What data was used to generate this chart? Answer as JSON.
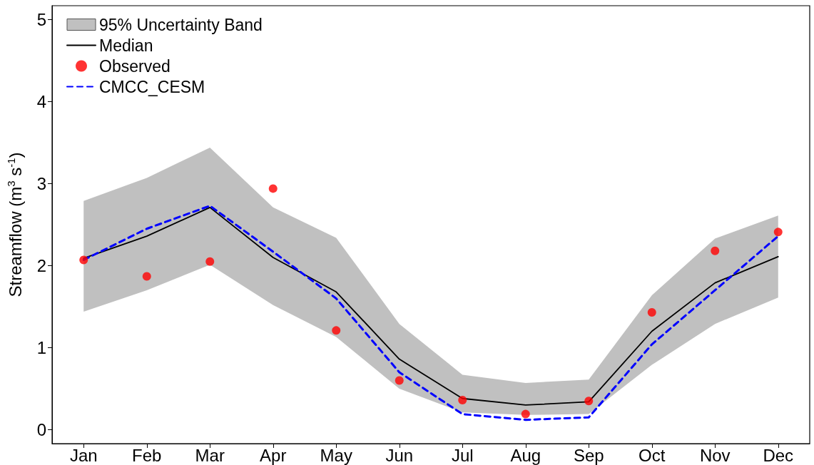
{
  "chart_data": {
    "type": "line",
    "ylabel": "Streamflow (m$^{3}$ s$^{-1}$)",
    "categories": [
      "Jan",
      "Feb",
      "Mar",
      "Apr",
      "May",
      "Jun",
      "Jul",
      "Aug",
      "Sep",
      "Oct",
      "Nov",
      "Dec"
    ],
    "ylim": [
      -0.17,
      5.17
    ],
    "yticks": [
      0,
      1,
      2,
      3,
      4,
      5
    ],
    "grid": false,
    "legend": "top left",
    "series": [
      {
        "name": "95% Uncertainty Band",
        "type": "area",
        "color": "#c0c0c0",
        "values": [
          null,
          null,
          null,
          null,
          null,
          null,
          null,
          null,
          null,
          null,
          null,
          null
        ],
        "lower": [
          1.44,
          1.7,
          2.01,
          1.52,
          1.13,
          0.5,
          0.21,
          0.18,
          0.19,
          0.79,
          1.29,
          1.61
        ],
        "upper": [
          2.79,
          3.07,
          3.44,
          2.71,
          2.34,
          1.29,
          0.67,
          0.57,
          0.61,
          1.64,
          2.33,
          2.61
        ]
      },
      {
        "name": "Median",
        "type": "line",
        "color": "#000000",
        "line_style": "solid",
        "marker": "none",
        "values": [
          2.09,
          2.36,
          2.71,
          2.1,
          1.68,
          0.86,
          0.38,
          0.3,
          0.34,
          1.2,
          1.79,
          2.11
        ]
      },
      {
        "name": "Observed",
        "type": "scatter",
        "color": "#ff0000",
        "marker": "circle",
        "values": [
          2.07,
          1.87,
          2.05,
          2.94,
          1.21,
          0.6,
          0.36,
          0.19,
          0.35,
          1.43,
          2.18,
          2.41
        ]
      },
      {
        "name": "CMCC_CESM",
        "type": "line",
        "color": "#0000ff",
        "line_style": "dashed",
        "marker": "none",
        "values": [
          2.07,
          2.45,
          2.73,
          2.17,
          1.6,
          0.7,
          0.19,
          0.12,
          0.15,
          1.04,
          1.7,
          2.36
        ]
      }
    ]
  }
}
